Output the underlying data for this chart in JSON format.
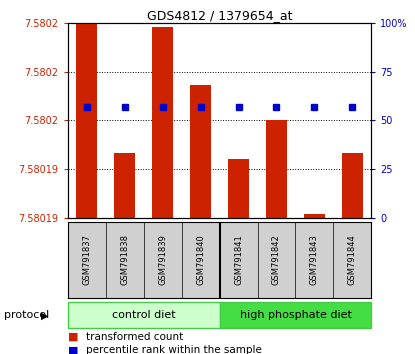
{
  "title": "GDS4812 / 1379654_at",
  "samples": [
    "GSM791837",
    "GSM791838",
    "GSM791839",
    "GSM791840",
    "GSM791841",
    "GSM791842",
    "GSM791843",
    "GSM791844"
  ],
  "bar_pcts": [
    100,
    33,
    98,
    68,
    30,
    50,
    2,
    33
  ],
  "perc_rank_pct": 57,
  "y_min": 7.58019,
  "y_max": 7.5802,
  "left_tick_pcts": [
    0,
    25,
    50,
    75,
    100
  ],
  "left_tick_labels": [
    "7.58019",
    "7.58019",
    "7.5802",
    "7.5802",
    "7.5802"
  ],
  "right_tick_vals": [
    0,
    25,
    50,
    75,
    100
  ],
  "right_tick_labels": [
    "0",
    "25",
    "50",
    "75",
    "100%"
  ],
  "bar_color": "#cc2200",
  "dot_color": "#0000cc",
  "control_color_light": "#ccffcc",
  "control_color_dark": "#44dd44",
  "sample_bg_color": "#d0d0d0",
  "grid_line_color": "#000000",
  "title_fontsize": 9,
  "tick_fontsize": 7,
  "sample_fontsize": 6,
  "legend_fontsize": 7.5,
  "control_group_size": 4,
  "high_phosphate_group_size": 4,
  "protocol_label": "protocol",
  "legend_bar_label": "transformed count",
  "legend_dot_label": "percentile rank within the sample"
}
